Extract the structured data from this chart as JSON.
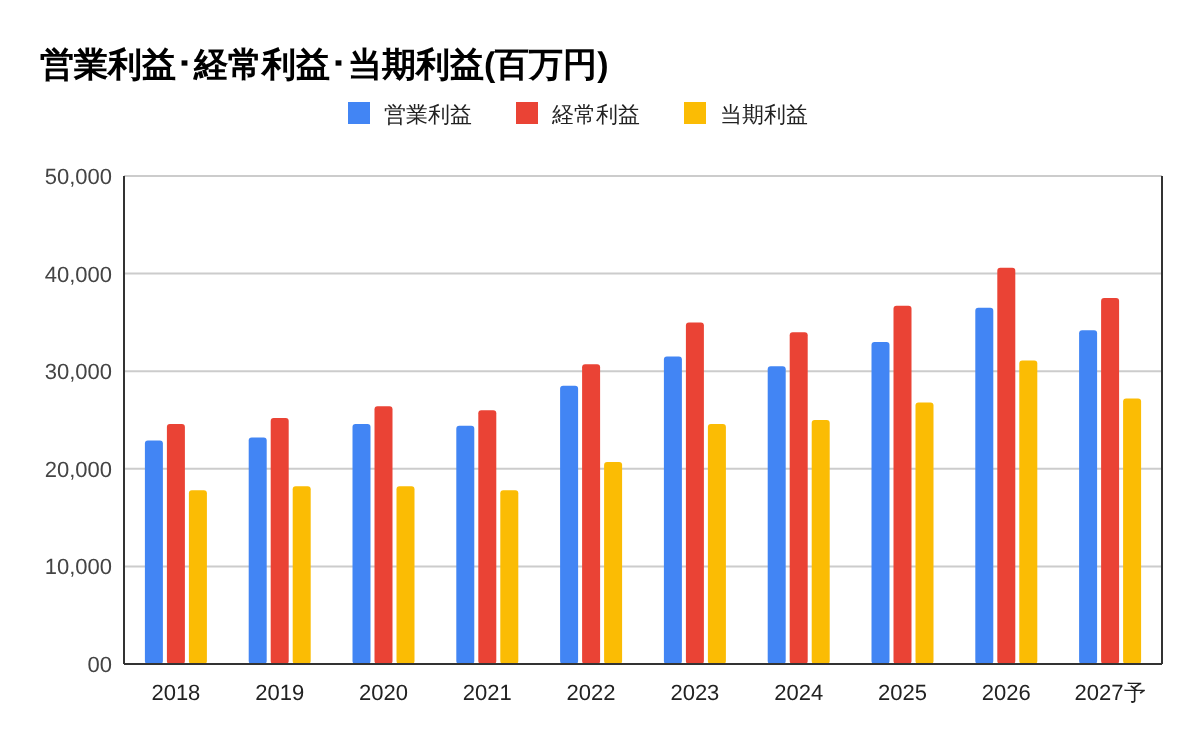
{
  "chart_data": {
    "type": "bar",
    "title": "営業利益･経常利益･当期利益(百万円)",
    "categories": [
      "2018",
      "2019",
      "2020",
      "2021",
      "2022",
      "2023",
      "2024",
      "2025",
      "2026",
      "2027予"
    ],
    "series": [
      {
        "name": "営業利益",
        "color": "#4285f4",
        "values": [
          22900,
          23200,
          24600,
          24400,
          28500,
          31500,
          30500,
          33000,
          36500,
          34200
        ]
      },
      {
        "name": "経常利益",
        "color": "#ea4335",
        "values": [
          24600,
          25200,
          26400,
          26000,
          30700,
          35000,
          34000,
          36700,
          40600,
          37500
        ]
      },
      {
        "name": "当期利益",
        "color": "#fbbc04",
        "values": [
          17800,
          18200,
          18200,
          17800,
          20700,
          24600,
          25000,
          26800,
          31100,
          27200
        ]
      }
    ],
    "ylim": [
      0,
      50000
    ],
    "yticks": [
      {
        "value": 0,
        "label": "00"
      },
      {
        "value": 10000,
        "label": "10,000"
      },
      {
        "value": 20000,
        "label": "20,000"
      },
      {
        "value": 30000,
        "label": "30,000"
      },
      {
        "value": 40000,
        "label": "40,000"
      },
      {
        "value": 50000,
        "label": "50,000"
      }
    ],
    "grid": "y",
    "legend": "top"
  }
}
